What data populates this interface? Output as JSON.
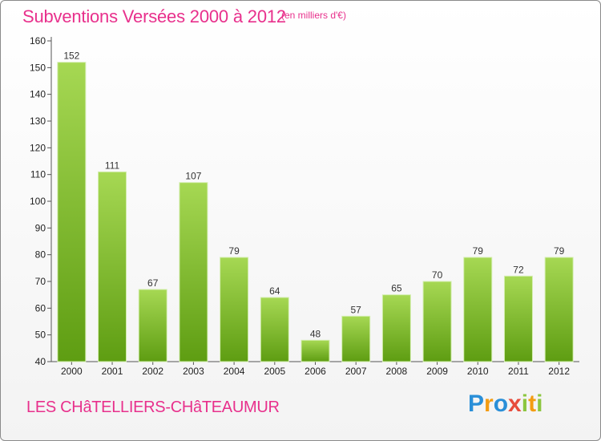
{
  "header": {
    "title": "Subventions Versées 2000 à 2012",
    "unit": "(en milliers d'€)"
  },
  "footer": {
    "commune": "LES CHâTELLIERS-CHâTEAUMUR",
    "logo_letters": [
      {
        "ch": "P",
        "color": "#2a8fd8"
      },
      {
        "ch": "r",
        "color": "#f39c12"
      },
      {
        "ch": "o",
        "color": "#2a8fd8"
      },
      {
        "ch": "x",
        "color": "#e74c3c"
      },
      {
        "ch": "i",
        "color": "#8cc63f"
      },
      {
        "ch": "t",
        "color": "#f39c12"
      },
      {
        "ch": "i",
        "color": "#8cc63f"
      }
    ]
  },
  "colors": {
    "accent": "#e8308c",
    "bar_light": "#a6d853",
    "bar_dark": "#5e9d12",
    "grid": "#bbbbbb"
  },
  "chart_data": {
    "type": "bar",
    "categories": [
      "2000",
      "2001",
      "2002",
      "2003",
      "2004",
      "2005",
      "2006",
      "2007",
      "2008",
      "2009",
      "2010",
      "2011",
      "2012"
    ],
    "values": [
      152,
      111,
      67,
      107,
      79,
      64,
      48,
      57,
      65,
      70,
      79,
      72,
      79
    ],
    "ylim": [
      40,
      160
    ],
    "yticks": [
      40,
      50,
      60,
      70,
      80,
      90,
      100,
      110,
      120,
      130,
      140,
      150,
      160
    ],
    "grid": false
  }
}
